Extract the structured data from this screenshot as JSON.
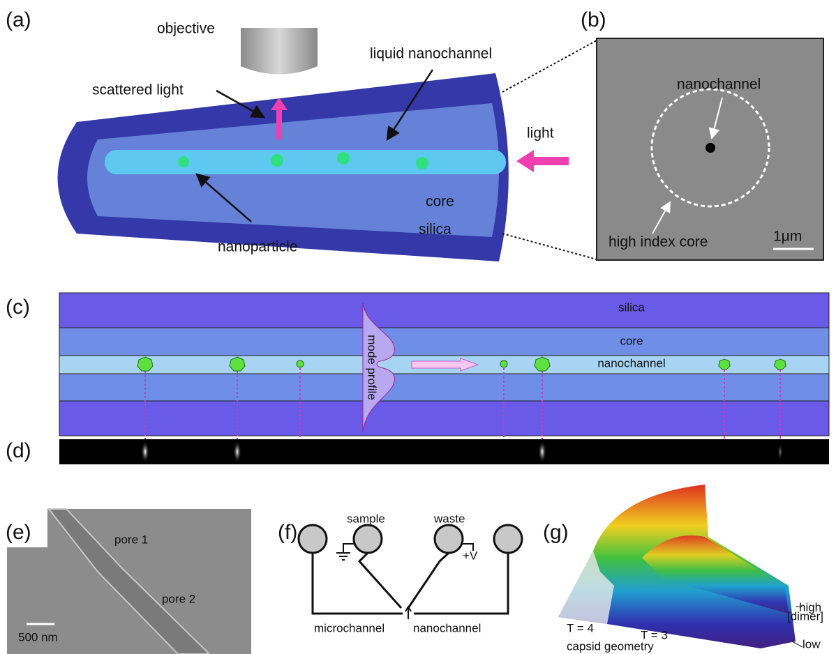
{
  "panel_a": {
    "label": "(a)",
    "objective": "objective",
    "liquid_nanochannel": "liquid nanochannel",
    "scattered_light": "scattered light",
    "light": "light",
    "core": "core",
    "silica": "silica",
    "nanoparticle": "nanoparticle"
  },
  "panel_b": {
    "label": "(b)",
    "nanochannel": "nanochannel",
    "high_index_core": "high index core",
    "scale": "1μm"
  },
  "panel_c": {
    "label": "(c)",
    "silica": "silica",
    "core": "core",
    "nanochannel": "nanochannel",
    "mode_profile": "mode profile"
  },
  "panel_d": {
    "label": "(d)"
  },
  "panel_e": {
    "label": "(e)",
    "pore_1": "pore 1",
    "pore_2": "pore 2",
    "scale": "500 nm"
  },
  "panel_f": {
    "label": "(f)",
    "sample": "sample",
    "waste": "waste",
    "voltage": "+V",
    "microchannel": "microchannel",
    "nanochannel": "nanochannel"
  },
  "panel_g": {
    "label": "(g)",
    "high": "high",
    "dimer": "[dimer]",
    "low": "low",
    "t4": "T = 4",
    "t3": "T = 3",
    "capsid_geometry": "capsid geometry"
  }
}
